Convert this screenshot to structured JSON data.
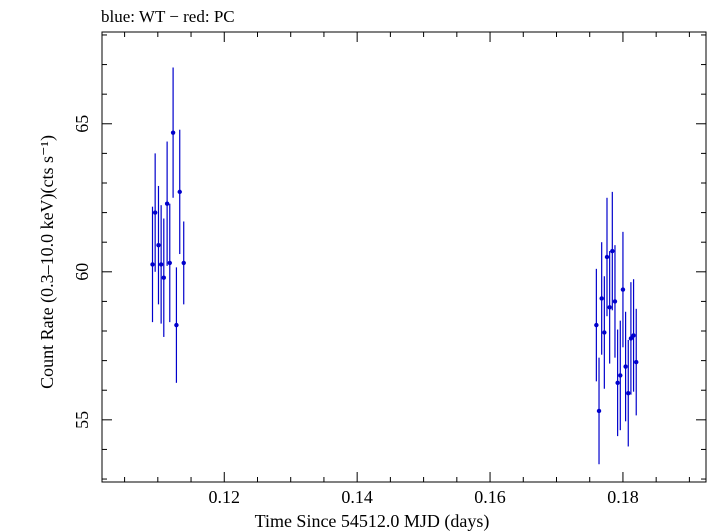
{
  "header_text": "blue: WT − red: PC",
  "chart_data": {
    "type": "scatter",
    "title": "",
    "xlabel": "Time Since 54512.0 MJD (days)",
    "ylabel": "Count Rate (0.3–10.0 keV)(cts s⁻¹)",
    "xlim": [
      0.1016,
      0.1925
    ],
    "ylim": [
      52.9,
      68.1
    ],
    "x_ticks": [
      0.12,
      0.14,
      0.16,
      0.18
    ],
    "x_tick_labels": [
      "0.12",
      "0.14",
      "0.16",
      "0.18"
    ],
    "y_ticks": [
      55,
      60,
      65
    ],
    "y_tick_labels": [
      "55",
      "60",
      "65"
    ],
    "grid": false,
    "series": [
      {
        "color": "#0000cc",
        "points": [
          {
            "x": 0.1092,
            "y": 60.25,
            "err": 1.95
          },
          {
            "x": 0.1096,
            "y": 62.0,
            "err": 2.0
          },
          {
            "x": 0.1101,
            "y": 60.9,
            "err": 2.0
          },
          {
            "x": 0.1105,
            "y": 60.25,
            "err": 2.0
          },
          {
            "x": 0.1109,
            "y": 59.8,
            "err": 2.0
          },
          {
            "x": 0.1114,
            "y": 62.3,
            "err": 2.1
          },
          {
            "x": 0.1118,
            "y": 60.3,
            "err": 2.0
          },
          {
            "x": 0.1123,
            "y": 64.7,
            "err": 2.2
          },
          {
            "x": 0.1128,
            "y": 58.2,
            "err": 1.95
          },
          {
            "x": 0.1133,
            "y": 62.7,
            "err": 2.1
          },
          {
            "x": 0.1139,
            "y": 60.3,
            "err": 1.4
          },
          {
            "x": 0.176,
            "y": 58.2,
            "err": 1.9
          },
          {
            "x": 0.1764,
            "y": 55.3,
            "err": 1.8
          },
          {
            "x": 0.1768,
            "y": 59.1,
            "err": 1.9
          },
          {
            "x": 0.1772,
            "y": 57.95,
            "err": 1.9
          },
          {
            "x": 0.1776,
            "y": 60.5,
            "err": 2.0
          },
          {
            "x": 0.178,
            "y": 58.8,
            "err": 1.9
          },
          {
            "x": 0.1784,
            "y": 60.7,
            "err": 2.0
          },
          {
            "x": 0.1788,
            "y": 59.0,
            "err": 1.9
          },
          {
            "x": 0.1792,
            "y": 56.25,
            "err": 1.8
          },
          {
            "x": 0.1796,
            "y": 56.5,
            "err": 1.85
          },
          {
            "x": 0.18,
            "y": 59.4,
            "err": 1.95
          },
          {
            "x": 0.1804,
            "y": 56.8,
            "err": 1.85
          },
          {
            "x": 0.1808,
            "y": 55.9,
            "err": 1.8
          },
          {
            "x": 0.1812,
            "y": 57.75,
            "err": 1.9
          },
          {
            "x": 0.1816,
            "y": 57.85,
            "err": 1.9
          },
          {
            "x": 0.182,
            "y": 56.95,
            "err": 1.8
          }
        ]
      }
    ]
  }
}
